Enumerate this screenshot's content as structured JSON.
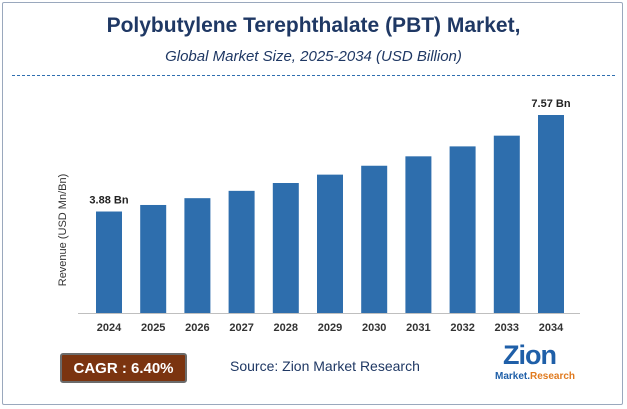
{
  "title": "Polybutylene Terephthalate (PBT) Market,",
  "subtitle": "Global Market Size, 2025-2034 (USD Billion)",
  "cagr": "CAGR : 6.40%",
  "source": "Source: Zion Market Research",
  "logo": {
    "main": "Zion",
    "sub_prefix": "Market.",
    "sub_suffix": "Research"
  },
  "colors": {
    "bar": "#2e6ead",
    "title": "#1f3864",
    "cagr_bg": "#7b3410"
  },
  "chart_data": {
    "type": "bar",
    "title": "Polybutylene Terephthalate (PBT) Market,",
    "subtitle": "Global Market Size, 2025-2034 (USD Billion)",
    "xlabel": "",
    "ylabel": "Revenue (USD Mn/Bn)",
    "categories": [
      "2024",
      "2025",
      "2026",
      "2027",
      "2028",
      "2029",
      "2030",
      "2031",
      "2032",
      "2033",
      "2034"
    ],
    "values": [
      3.88,
      4.13,
      4.39,
      4.67,
      4.97,
      5.29,
      5.63,
      5.99,
      6.37,
      6.78,
      7.57
    ],
    "data_labels": [
      {
        "index": 0,
        "text": "3.88 Bn"
      },
      {
        "index": 10,
        "text": "7.57 Bn"
      }
    ],
    "grid": false
  }
}
